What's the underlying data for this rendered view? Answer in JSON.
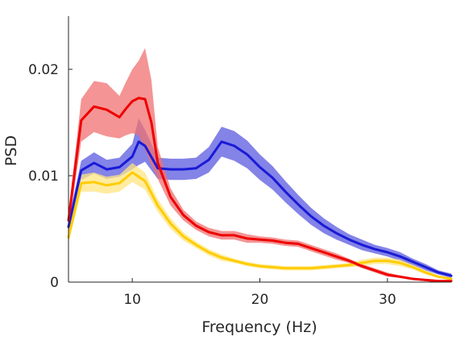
{
  "chart_data": {
    "type": "line",
    "title": "",
    "xlabel": "Frequency (Hz)",
    "ylabel": "PSD",
    "xlim": [
      5,
      35
    ],
    "ylim": [
      0,
      0.025
    ],
    "xticks": [
      10,
      20,
      30
    ],
    "xtick_labels": [
      "10",
      "20",
      "30"
    ],
    "yticks": [
      0,
      0.01,
      0.02
    ],
    "ytick_labels": [
      "0",
      "0.01",
      "0.02"
    ],
    "grid": false,
    "legend": "none",
    "series": [
      {
        "color": "#1a1ad6",
        "shade": "#5a5ae0",
        "x": [
          5,
          6,
          7,
          8,
          9,
          10,
          10.5,
          11,
          12,
          13,
          14,
          15,
          16,
          17,
          18,
          19,
          20,
          21,
          22,
          23,
          24,
          25,
          26,
          27,
          28,
          29,
          30,
          31,
          32,
          33,
          34,
          35
        ],
        "y": [
          0.0052,
          0.0105,
          0.0112,
          0.0106,
          0.0108,
          0.0118,
          0.0132,
          0.0128,
          0.0107,
          0.0106,
          0.0106,
          0.0107,
          0.0115,
          0.0132,
          0.0128,
          0.012,
          0.0108,
          0.0098,
          0.0085,
          0.0073,
          0.0062,
          0.0053,
          0.0046,
          0.004,
          0.0035,
          0.0031,
          0.0028,
          0.0024,
          0.0019,
          0.0014,
          0.0009,
          0.0006
        ],
        "err": [
          0.0006,
          0.0009,
          0.001,
          0.0009,
          0.0009,
          0.0012,
          0.0022,
          0.0015,
          0.001,
          0.001,
          0.001,
          0.001,
          0.0012,
          0.0014,
          0.0014,
          0.0013,
          0.0012,
          0.0011,
          0.001,
          0.0009,
          0.0008,
          0.0007,
          0.0006,
          0.0005,
          0.0005,
          0.0004,
          0.0004,
          0.0004,
          0.0003,
          0.0003,
          0.0002,
          0.0002
        ]
      },
      {
        "color": "#ffcc00",
        "shade": "#ffe680",
        "x": [
          5,
          6,
          7,
          8,
          9,
          10,
          11,
          12,
          13,
          14,
          15,
          16,
          17,
          18,
          19,
          20,
          21,
          22,
          23,
          24,
          25,
          26,
          27,
          28,
          29,
          30,
          31,
          32,
          33,
          34,
          35
        ],
        "y": [
          0.0042,
          0.0093,
          0.0094,
          0.0091,
          0.0093,
          0.0103,
          0.0095,
          0.0072,
          0.0055,
          0.0043,
          0.0035,
          0.0028,
          0.0023,
          0.002,
          0.0017,
          0.0015,
          0.0014,
          0.0013,
          0.0013,
          0.0013,
          0.0014,
          0.0015,
          0.0016,
          0.0018,
          0.002,
          0.002,
          0.0018,
          0.0014,
          0.0009,
          0.0005,
          0.0003
        ],
        "err": [
          0.0005,
          0.0008,
          0.0009,
          0.0008,
          0.0008,
          0.0009,
          0.0008,
          0.0006,
          0.0005,
          0.0004,
          0.0003,
          0.0003,
          0.0003,
          0.0002,
          0.0002,
          0.0002,
          0.0002,
          0.0002,
          0.0002,
          0.0002,
          0.0002,
          0.0002,
          0.0002,
          0.0003,
          0.0003,
          0.0003,
          0.0003,
          0.0002,
          0.0002,
          0.0001,
          0.0001
        ]
      },
      {
        "color": "#ee0000",
        "shade": "#f07070",
        "x": [
          5,
          6,
          7,
          8,
          9,
          9.5,
          10,
          10.5,
          11,
          11.5,
          12,
          13,
          14,
          15,
          16,
          17,
          18,
          19,
          20,
          21,
          22,
          23,
          24,
          25,
          26,
          27,
          28,
          29,
          30,
          31,
          32,
          33,
          34,
          35
        ],
        "y": [
          0.0058,
          0.0152,
          0.0165,
          0.0162,
          0.0155,
          0.0163,
          0.017,
          0.0173,
          0.0172,
          0.015,
          0.0112,
          0.008,
          0.0063,
          0.0053,
          0.0047,
          0.0044,
          0.0044,
          0.0041,
          0.004,
          0.0039,
          0.0037,
          0.0036,
          0.0032,
          0.0028,
          0.0024,
          0.002,
          0.0015,
          0.0011,
          0.0007,
          0.0005,
          0.0003,
          0.0002,
          0.0001,
          0.0001
        ],
        "err": [
          0.0008,
          0.002,
          0.0024,
          0.0025,
          0.002,
          0.0025,
          0.003,
          0.0035,
          0.0048,
          0.004,
          0.0015,
          0.0008,
          0.0005,
          0.0004,
          0.0004,
          0.0004,
          0.0004,
          0.0004,
          0.0003,
          0.0003,
          0.0003,
          0.0003,
          0.0003,
          0.0003,
          0.0003,
          0.0002,
          0.0002,
          0.0002,
          0.0002,
          0.0001,
          0.0001,
          0.0001,
          0.0001,
          0.0001
        ]
      }
    ]
  }
}
